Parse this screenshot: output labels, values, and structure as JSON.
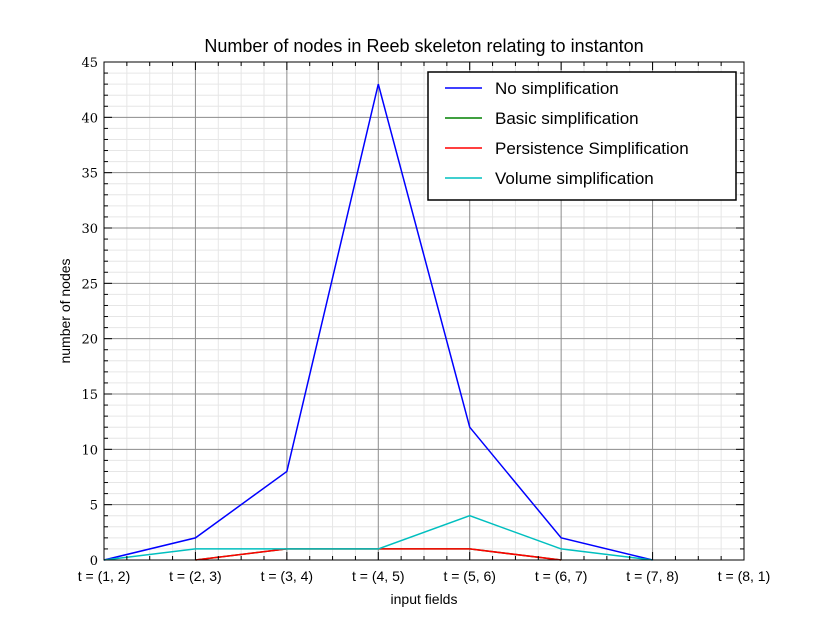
{
  "chart_data": {
    "type": "line",
    "title": "Number of nodes in Reeb skeleton relating to instanton",
    "xlabel": "input fields",
    "ylabel": "number of nodes",
    "ylim": [
      0,
      45
    ],
    "yticks": [
      0,
      5,
      10,
      15,
      20,
      25,
      30,
      35,
      40,
      45
    ],
    "categories": [
      "t = (1, 2)",
      "t = (2, 3)",
      "t = (3, 4)",
      "t = (4, 5)",
      "t = (5, 6)",
      "t = (6, 7)",
      "t = (7, 8)",
      "t = (8, 1)"
    ],
    "legend_position": "top-right",
    "series": [
      {
        "name": "No simplification",
        "color": "#0000ff",
        "values": [
          0,
          2,
          8,
          43,
          12,
          2,
          0,
          null
        ]
      },
      {
        "name": "Basic simplification",
        "color": "#008000",
        "values": [
          null,
          0,
          1,
          1,
          1,
          0,
          null,
          null
        ]
      },
      {
        "name": "Persistence Simplification",
        "color": "#ff0000",
        "values": [
          null,
          0,
          1,
          1,
          1,
          0,
          null,
          null
        ]
      },
      {
        "name": "Volume simplification",
        "color": "#00bfbf",
        "values": [
          0,
          1,
          1,
          1,
          4,
          1,
          0,
          null
        ]
      }
    ]
  }
}
